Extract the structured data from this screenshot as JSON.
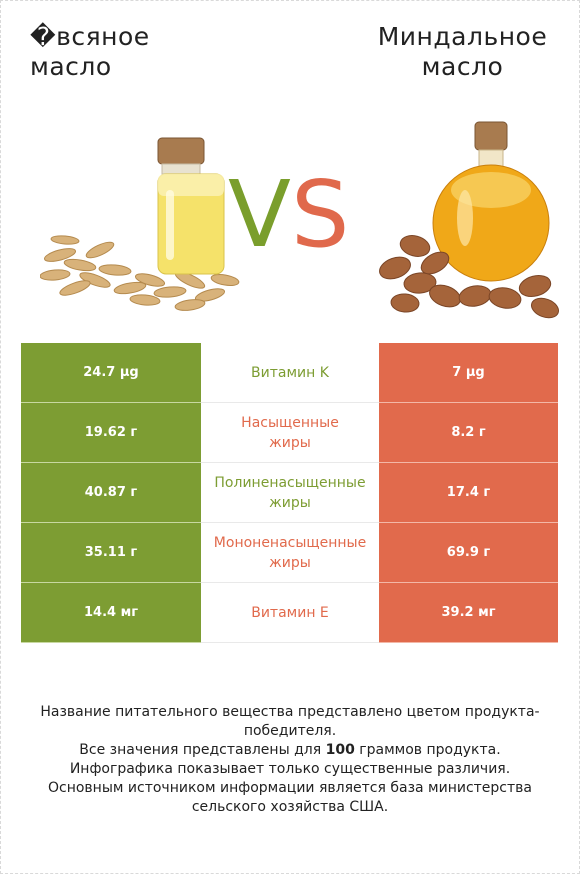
{
  "left_product": {
    "line1": "�всяное",
    "line2": "масло"
  },
  "right_product": {
    "line1": "Миндальное",
    "line2": "масло"
  },
  "vs": {
    "v": "V",
    "s": "S"
  },
  "colors": {
    "left": "#7d9d33",
    "right": "#e16a4c"
  },
  "rows": [
    {
      "left": "24.7 µg",
      "nutrient": "Витамин K",
      "right": "7 µg",
      "winner": "left"
    },
    {
      "left": "19.62 г",
      "nutrient": "Насыщенные\nжиры",
      "right": "8.2 г",
      "winner": "right"
    },
    {
      "left": "40.87 г",
      "nutrient": "Полиненасыщенные\nжиры",
      "right": "17.4 г",
      "winner": "left"
    },
    {
      "left": "35.11 г",
      "nutrient": "Мононенасыщенные\nжиры",
      "right": "69.9 г",
      "winner": "right"
    },
    {
      "left": "14.4 мг",
      "nutrient": "Витамин E",
      "right": "39.2 мг",
      "winner": "right"
    }
  ],
  "footer": {
    "line1": "Название питательного вещества представлено цветом продукта-победителя.",
    "line2_pre": "Все значения представлены для ",
    "line2_bold": "100",
    "line2_post": " граммов продукта.",
    "line3": "Инфографика показывает только существенные различия.",
    "line4": "Основным источником информации является база министерства сельского хозяйства США."
  }
}
